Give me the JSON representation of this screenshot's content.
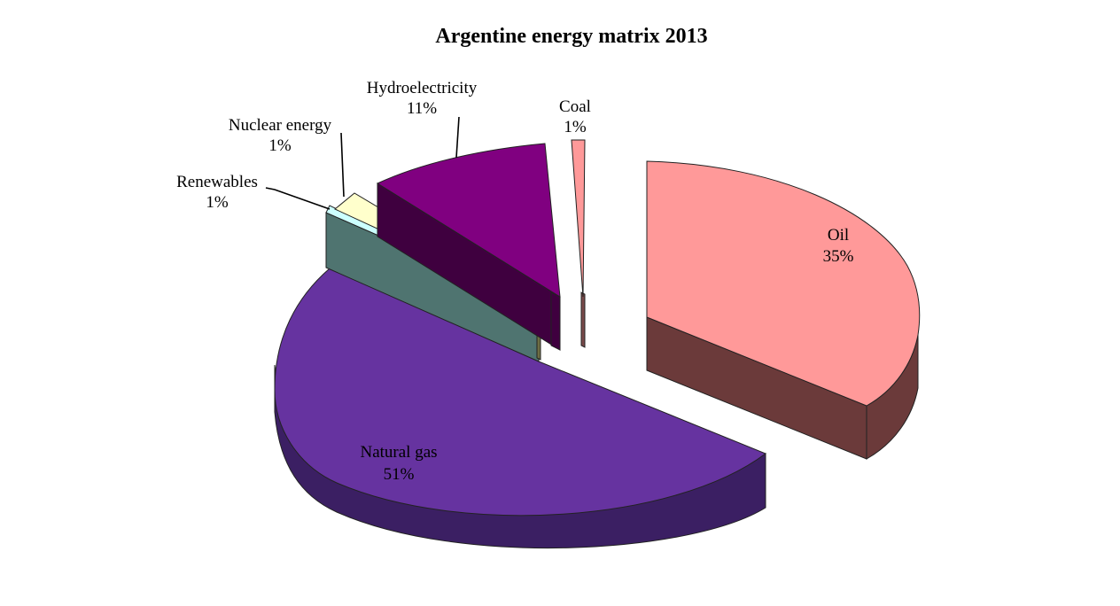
{
  "chart_data": {
    "type": "pie",
    "title": "Argentine energy matrix 2013",
    "three_d": true,
    "exploded": true,
    "slices": [
      {
        "name": "Oil",
        "label": "Oil",
        "percent_label": "35%",
        "value": 35,
        "color": "#ff9999",
        "side_color": "#6b3a3a"
      },
      {
        "name": "Natural gas",
        "label": "Natural gas",
        "percent_label": "51%",
        "value": 51,
        "color": "#6633a0",
        "side_color": "#3b1f63"
      },
      {
        "name": "Renewables",
        "label": "Renewables",
        "percent_label": "1%",
        "value": 1,
        "color": "#ccffff",
        "side_color": "#4f7470"
      },
      {
        "name": "Nuclear energy",
        "label": "Nuclear energy",
        "percent_label": "1%",
        "value": 1,
        "color": "#ffffcc",
        "side_color": "#6e6e44"
      },
      {
        "name": "Hydroelectricity",
        "label": "Hydroelectricity",
        "percent_label": "11%",
        "value": 11,
        "color": "#800080",
        "side_color": "#3f003f"
      },
      {
        "name": "Coal",
        "label": "Coal",
        "percent_label": "1%",
        "value": 1,
        "color": "#ff9999",
        "side_color": "#7a4a4a"
      }
    ]
  }
}
